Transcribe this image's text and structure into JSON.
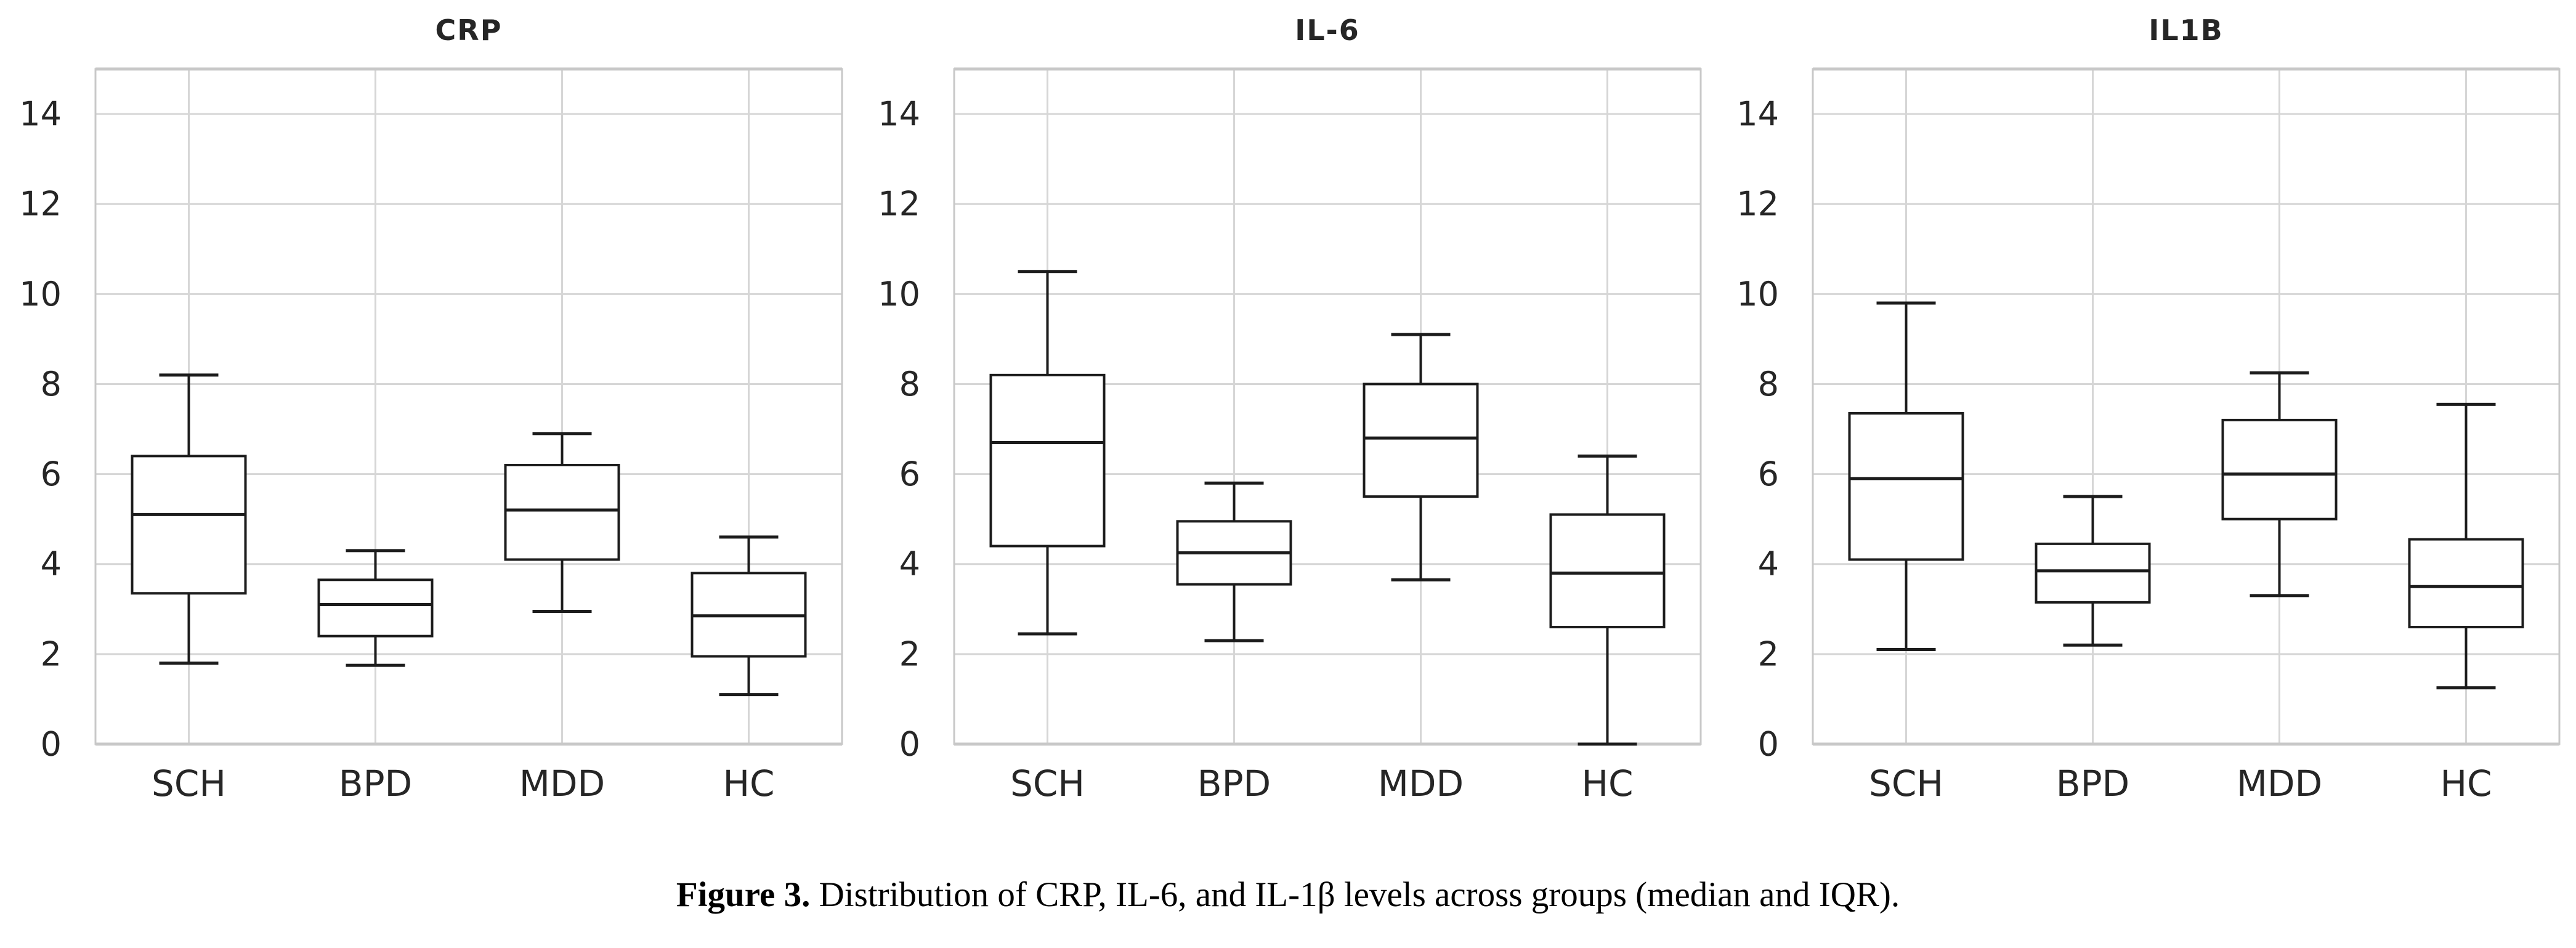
{
  "figure": {
    "caption_prefix": "Figure 3.",
    "caption_body": " Distribution of CRP, IL-6, and IL-1β levels across groups (median and IQR)."
  },
  "axes": {
    "y_min": 0,
    "y_max": 15,
    "y_ticks": [
      0,
      2,
      4,
      6,
      8,
      10,
      12,
      14
    ],
    "categories": [
      "SCH",
      "BPD",
      "MDD",
      "HC"
    ],
    "grid": true
  },
  "colors": {
    "background": "#ffffff",
    "grid_line": "#d6d6d6",
    "plot_border": "#c8c8c8",
    "box_stroke": "#1c1c1c",
    "box_fill": "#ffffff",
    "tick_text": "#262626",
    "title_text": "#262626"
  },
  "chart_data": [
    {
      "type": "box",
      "title": "CRP",
      "xlabel": "",
      "ylabel": "",
      "ylim": [
        0,
        15
      ],
      "categories": [
        "SCH",
        "BPD",
        "MDD",
        "HC"
      ],
      "series": [
        {
          "label": "SCH",
          "whisker_low": 1.8,
          "q1": 3.35,
          "median": 5.1,
          "q3": 6.4,
          "whisker_high": 8.2
        },
        {
          "label": "BPD",
          "whisker_low": 1.75,
          "q1": 2.4,
          "median": 3.1,
          "q3": 3.65,
          "whisker_high": 4.3
        },
        {
          "label": "MDD",
          "whisker_low": 2.95,
          "q1": 4.1,
          "median": 5.2,
          "q3": 6.2,
          "whisker_high": 6.9
        },
        {
          "label": "HC",
          "whisker_low": 1.1,
          "q1": 1.95,
          "median": 2.85,
          "q3": 3.8,
          "whisker_high": 4.6
        }
      ]
    },
    {
      "type": "box",
      "title": "IL-6",
      "xlabel": "",
      "ylabel": "",
      "ylim": [
        0,
        15
      ],
      "categories": [
        "SCH",
        "BPD",
        "MDD",
        "HC"
      ],
      "series": [
        {
          "label": "SCH",
          "whisker_low": 2.45,
          "q1": 4.4,
          "median": 6.7,
          "q3": 8.2,
          "whisker_high": 10.5
        },
        {
          "label": "BPD",
          "whisker_low": 2.3,
          "q1": 3.55,
          "median": 4.25,
          "q3": 4.95,
          "whisker_high": 5.8
        },
        {
          "label": "MDD",
          "whisker_low": 3.65,
          "q1": 5.5,
          "median": 6.8,
          "q3": 8.0,
          "whisker_high": 9.1
        },
        {
          "label": "HC",
          "whisker_low": 0.0,
          "q1": 2.6,
          "median": 3.8,
          "q3": 5.1,
          "whisker_high": 6.4
        }
      ]
    },
    {
      "type": "box",
      "title": "IL1B",
      "xlabel": "",
      "ylabel": "",
      "ylim": [
        0,
        15
      ],
      "categories": [
        "SCH",
        "BPD",
        "MDD",
        "HC"
      ],
      "series": [
        {
          "label": "SCH",
          "whisker_low": 2.1,
          "q1": 4.1,
          "median": 5.9,
          "q3": 7.35,
          "whisker_high": 9.8
        },
        {
          "label": "BPD",
          "whisker_low": 2.2,
          "q1": 3.15,
          "median": 3.85,
          "q3": 4.45,
          "whisker_high": 5.5
        },
        {
          "label": "MDD",
          "whisker_low": 3.3,
          "q1": 5.0,
          "median": 6.0,
          "q3": 7.2,
          "whisker_high": 8.25
        },
        {
          "label": "HC",
          "whisker_low": 1.25,
          "q1": 2.6,
          "median": 3.5,
          "q3": 4.55,
          "whisker_high": 7.55
        }
      ]
    }
  ]
}
